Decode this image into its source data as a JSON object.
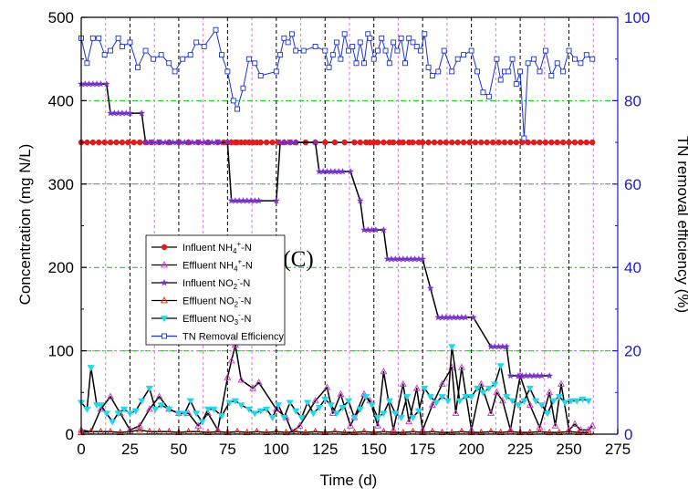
{
  "chart_data": {
    "type": "line",
    "panel_label": "(C)",
    "xlabel": "Time (d)",
    "ylabel_left": "Concentration (mg N/L)",
    "ylabel_right": "TN removal efficiency (%)",
    "xlim": [
      0,
      275
    ],
    "ylim_left": [
      0,
      500
    ],
    "ylim_right": [
      0,
      100
    ],
    "xticks": [
      "0",
      "25",
      "50",
      "75",
      "100",
      "125",
      "150",
      "175",
      "200",
      "225",
      "250",
      "275"
    ],
    "yticks_left": [
      "0",
      "100",
      "200",
      "300",
      "400",
      "500"
    ],
    "yticks_right": [
      "0",
      "20",
      "40",
      "60",
      "80",
      "100"
    ],
    "grid": true,
    "legend_position": "left",
    "colors": {
      "influent_nh4": "#e41a1c",
      "effluent_nh4": "#cc33cc",
      "influent_no2": "#7b2fd6",
      "effluent_no2": "#e8200c",
      "effluent_no3": "#22d8e8",
      "tn_eff": "#1a33cc",
      "right_axis": "#1a1acc",
      "grid_green": "#00cc00",
      "grid_pink": "#ee66ee"
    },
    "series": [
      {
        "key": "influent_nh4",
        "axis": "left",
        "marker": "circle",
        "x": [
          0,
          3,
          6,
          9,
          12,
          15,
          18,
          21,
          24,
          27,
          30,
          33,
          36,
          40,
          45,
          50,
          55,
          60,
          65,
          70,
          73,
          75,
          77,
          79,
          80,
          82,
          84,
          86,
          88,
          90,
          92,
          95,
          98,
          101,
          104,
          107,
          110,
          115,
          120,
          125,
          130,
          135,
          140,
          143,
          146,
          148,
          150,
          152,
          155,
          158,
          160,
          163,
          165,
          168,
          170,
          173,
          175,
          178,
          181,
          184,
          187,
          190,
          193,
          196,
          199,
          202,
          205,
          208,
          211,
          214,
          217,
          220,
          223,
          226,
          229,
          232,
          235,
          238,
          241,
          244,
          247,
          250,
          253,
          256,
          259,
          262
        ],
        "y": [
          350,
          350,
          350,
          350,
          350,
          350,
          350,
          350,
          350,
          350,
          350,
          350,
          350,
          350,
          350,
          350,
          350,
          350,
          350,
          350,
          350,
          350,
          350,
          350,
          350,
          350,
          350,
          350,
          350,
          350,
          350,
          350,
          350,
          350,
          350,
          350,
          350,
          350,
          350,
          350,
          350,
          350,
          350,
          350,
          350,
          350,
          350,
          350,
          350,
          350,
          350,
          350,
          350,
          350,
          350,
          350,
          350,
          350,
          350,
          350,
          350,
          350,
          350,
          350,
          350,
          350,
          350,
          350,
          350,
          350,
          350,
          350,
          350,
          350,
          350,
          350,
          350,
          350,
          350,
          350,
          350,
          350,
          350,
          350,
          350,
          350
        ]
      },
      {
        "key": "effluent_nh4",
        "axis": "left",
        "marker": "triangle-up-open",
        "x": [
          0,
          5,
          10,
          15,
          20,
          25,
          30,
          35,
          40,
          45,
          50,
          55,
          60,
          65,
          70,
          75,
          77,
          79,
          82,
          88,
          91,
          100,
          105,
          108,
          112,
          120,
          126,
          129,
          133,
          138,
          140,
          145,
          148,
          152,
          155,
          160,
          165,
          168,
          172,
          175,
          180,
          185,
          190,
          192,
          195,
          200,
          205,
          210,
          213,
          216,
          220,
          225,
          230,
          235,
          240,
          243,
          246,
          250,
          253,
          256,
          260,
          262
        ],
        "y": [
          5,
          3,
          30,
          45,
          25,
          5,
          10,
          30,
          45,
          30,
          25,
          25,
          10,
          25,
          5,
          68,
          88,
          107,
          65,
          55,
          62,
          30,
          20,
          3,
          10,
          40,
          56,
          25,
          48,
          10,
          20,
          48,
          40,
          10,
          75,
          5,
          60,
          15,
          55,
          5,
          35,
          60,
          80,
          25,
          80,
          5,
          60,
          25,
          50,
          40,
          5,
          70,
          35,
          8,
          50,
          10,
          60,
          5,
          12,
          5,
          5,
          10
        ]
      },
      {
        "key": "influent_no2",
        "axis": "left",
        "marker": "star",
        "x": [
          0,
          2,
          4,
          6,
          8,
          10,
          13,
          15,
          17,
          19,
          21,
          23,
          25,
          31,
          33,
          35,
          37,
          39,
          41,
          43,
          45,
          47,
          49,
          51,
          53,
          55,
          57,
          59,
          61,
          63,
          65,
          67,
          69,
          71,
          75,
          77,
          79,
          81,
          83,
          85,
          87,
          89,
          91,
          100,
          102,
          104,
          106,
          108,
          110,
          120,
          122,
          124,
          126,
          128,
          130,
          132,
          134,
          138,
          143,
          145,
          147,
          149,
          151,
          155,
          157,
          159,
          161,
          163,
          165,
          167,
          169,
          171,
          173,
          175,
          179,
          183,
          185,
          187,
          189,
          191,
          193,
          195,
          197,
          201,
          210,
          212,
          214,
          216,
          218,
          220,
          224,
          226,
          228,
          230,
          232,
          234,
          236,
          240
        ],
        "y": [
          420,
          420,
          420,
          420,
          420,
          420,
          420,
          385,
          385,
          385,
          385,
          385,
          385,
          385,
          350,
          350,
          350,
          350,
          350,
          350,
          350,
          350,
          350,
          350,
          350,
          350,
          350,
          350,
          350,
          350,
          350,
          350,
          350,
          350,
          350,
          280,
          280,
          280,
          280,
          280,
          280,
          280,
          280,
          280,
          350,
          350,
          350,
          350,
          350,
          350,
          315,
          315,
          315,
          315,
          315,
          315,
          315,
          315,
          280,
          245,
          245,
          245,
          245,
          245,
          210,
          210,
          210,
          210,
          210,
          210,
          210,
          210,
          210,
          210,
          175,
          140,
          140,
          140,
          140,
          140,
          140,
          140,
          140,
          140,
          105,
          105,
          105,
          105,
          105,
          70,
          70,
          70,
          70,
          70,
          70,
          70,
          70,
          70
        ]
      },
      {
        "key": "effluent_no2",
        "axis": "left",
        "marker": "triangle-up-open",
        "x": [
          0,
          5,
          10,
          15,
          20,
          25,
          30,
          35,
          40,
          45,
          50,
          55,
          60,
          65,
          70,
          75,
          80,
          85,
          90,
          95,
          100,
          105,
          110,
          115,
          120,
          125,
          130,
          135,
          140,
          145,
          150,
          155,
          160,
          165,
          170,
          175,
          180,
          185,
          190,
          195,
          200,
          205,
          210,
          215,
          220,
          225,
          230,
          235,
          240,
          245,
          250,
          255,
          260
        ],
        "y": [
          2,
          3,
          3,
          3,
          2,
          3,
          5,
          3,
          3,
          3,
          2,
          3,
          3,
          2,
          3,
          2,
          3,
          2,
          3,
          2,
          3,
          2,
          3,
          2,
          3,
          2,
          3,
          2,
          2,
          3,
          2,
          3,
          2,
          2,
          3,
          2,
          3,
          2,
          2,
          3,
          2,
          2,
          3,
          2,
          3,
          2,
          2,
          3,
          2,
          2,
          3,
          2,
          2
        ]
      },
      {
        "key": "effluent_no3",
        "axis": "left",
        "marker": "triangle-down",
        "x": [
          0,
          3,
          5,
          8,
          10,
          13,
          16,
          19,
          22,
          25,
          28,
          31,
          35,
          38,
          41,
          45,
          50,
          53,
          56,
          59,
          62,
          65,
          68,
          72,
          76,
          79,
          82,
          86,
          89,
          92,
          95,
          98,
          101,
          104,
          107,
          110,
          113,
          116,
          119,
          122,
          125,
          128,
          131,
          134,
          137,
          140,
          143,
          146,
          149,
          152,
          155,
          158,
          161,
          164,
          167,
          170,
          173,
          176,
          179,
          182,
          185,
          188,
          190,
          194,
          197,
          200,
          203,
          206,
          209,
          212,
          215,
          218,
          221,
          224,
          227,
          230,
          233,
          236,
          239,
          242,
          245,
          248,
          251,
          254,
          257,
          260
        ],
        "y": [
          38,
          30,
          80,
          35,
          35,
          25,
          15,
          25,
          30,
          25,
          28,
          40,
          55,
          30,
          35,
          30,
          25,
          25,
          40,
          25,
          15,
          30,
          30,
          22,
          38,
          40,
          35,
          30,
          25,
          28,
          30,
          20,
          35,
          20,
          38,
          28,
          20,
          38,
          25,
          32,
          42,
          35,
          25,
          32,
          40,
          20,
          30,
          45,
          35,
          20,
          25,
          40,
          25,
          20,
          45,
          20,
          28,
          55,
          45,
          38,
          45,
          40,
          105,
          40,
          45,
          45,
          55,
          50,
          55,
          60,
          82,
          45,
          40,
          35,
          40,
          55,
          40,
          35,
          25,
          40,
          45,
          38,
          40,
          40,
          42,
          40
        ]
      },
      {
        "key": "tn_eff",
        "axis": "right",
        "marker": "square-open",
        "x": [
          0,
          3,
          6,
          9,
          12,
          15,
          19,
          21,
          25,
          29,
          33,
          37,
          41,
          45,
          48,
          52,
          56,
          59,
          63,
          69,
          72,
          75,
          78,
          80,
          83,
          86,
          89,
          92,
          100,
          102,
          104,
          106,
          108,
          110,
          114,
          120,
          125,
          127,
          129,
          131,
          133,
          135,
          137,
          139,
          141,
          143,
          145,
          147,
          148,
          150,
          152,
          154,
          156,
          158,
          160,
          162,
          164,
          166,
          168,
          170,
          172,
          174,
          176,
          178,
          180,
          183,
          186,
          190,
          193,
          196,
          200,
          203,
          206,
          209,
          213,
          215,
          217,
          219,
          221,
          223,
          225,
          227,
          229,
          232,
          235,
          238,
          241,
          244,
          247,
          250,
          253,
          256,
          259,
          262
        ],
        "y": [
          95,
          89,
          95,
          95,
          91,
          92,
          95,
          93,
          94,
          88,
          92,
          90,
          91,
          89,
          87,
          90,
          91,
          94,
          93,
          97,
          91,
          87,
          80,
          78,
          83,
          90,
          89,
          86,
          87,
          91,
          95,
          94,
          96,
          92,
          92,
          93,
          92,
          88,
          91,
          94,
          90,
          96,
          92,
          93,
          89,
          94,
          89,
          96,
          95,
          90,
          92,
          95,
          92,
          89,
          94,
          92,
          95,
          89,
          95,
          94,
          93,
          92,
          96,
          88,
          86,
          87,
          92,
          87,
          90,
          91,
          92,
          87,
          82,
          81,
          90,
          85,
          87,
          87,
          90,
          84,
          87,
          71,
          89,
          90,
          87,
          92,
          86,
          89,
          87,
          92,
          90,
          89,
          91,
          90
        ]
      }
    ],
    "legend": [
      {
        "key": "influent_nh4",
        "pre": "Influent NH",
        "sub": "4",
        "sup": "+",
        "post": "-N"
      },
      {
        "key": "effluent_nh4",
        "pre": "Effluent NH",
        "sub": "4",
        "sup": "+",
        "post": "-N"
      },
      {
        "key": "influent_no2",
        "pre": "Influent  NO",
        "sub": "2",
        "sup": "-",
        "post": "-N"
      },
      {
        "key": "effluent_no2",
        "pre": "Effluent NO",
        "sub": "2",
        "sup": "-",
        "post": "-N"
      },
      {
        "key": "effluent_no3",
        "pre": "Effluent NO",
        "sub": "3",
        "sup": "-",
        "post": "-N"
      },
      {
        "key": "tn_eff",
        "pre": "TN Removal Efficiency",
        "sub": "",
        "sup": "",
        "post": ""
      }
    ]
  }
}
